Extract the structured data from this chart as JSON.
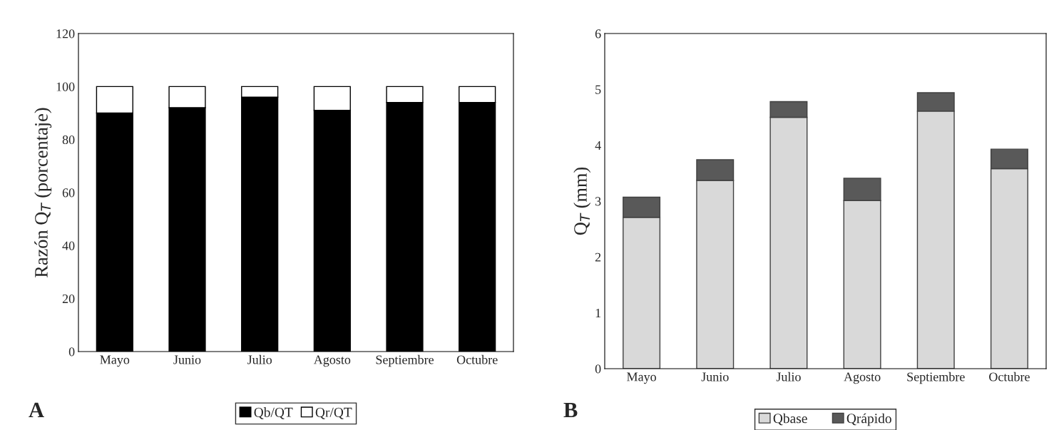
{
  "chart_data": [
    {
      "type": "bar",
      "stacked": true,
      "ylabel": "Razón Q$_{T}$ (porcentaje)",
      "categories": [
        "Mayo",
        "Junio",
        "Julio",
        "Agosto",
        "Septiembre",
        "Octubre"
      ],
      "series": [
        {
          "name": "Qb/QT",
          "color": "#000000",
          "values": [
            90,
            92,
            96,
            91,
            94,
            94
          ]
        },
        {
          "name": "Qr/QT",
          "color": "#ffffff",
          "values": [
            10,
            8,
            4,
            9,
            6,
            6
          ]
        }
      ],
      "ylim": [
        0,
        120
      ],
      "yticks": [
        0,
        20,
        40,
        60,
        80,
        100,
        120
      ],
      "grid": false,
      "legend": "bottom",
      "annotations": [
        "A"
      ]
    },
    {
      "type": "bar",
      "stacked": true,
      "ylabel": "Q$_{T}$ (mm)",
      "categories": [
        "Mayo",
        "Junio",
        "Julio",
        "Agosto",
        "Septiembre",
        "Octubre"
      ],
      "series": [
        {
          "name": "Qbase",
          "color": "#d9d9d9",
          "values": [
            2.71,
            3.37,
            4.5,
            3.01,
            4.61,
            3.58
          ]
        },
        {
          "name": "Qrápido",
          "color": "#595959",
          "values": [
            0.36,
            0.37,
            0.28,
            0.4,
            0.33,
            0.35
          ]
        }
      ],
      "ylim": [
        0,
        6
      ],
      "yticks": [
        0,
        1,
        2,
        3,
        4,
        5,
        6
      ],
      "grid": false,
      "legend": "bottom",
      "annotations": [
        "B"
      ]
    }
  ]
}
